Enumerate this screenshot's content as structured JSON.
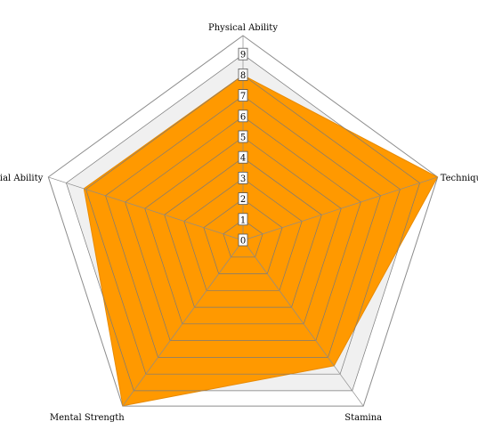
{
  "chart_data": {
    "type": "radar",
    "categories": [
      "Physical Ability",
      "Technique",
      "Stamina",
      "Mental Strength",
      "Special Ability"
    ],
    "series": [
      {
        "values": [
          8,
          9.9,
          7.5,
          9.9,
          8.1
        ]
      }
    ],
    "rmin": 0,
    "rmax": 9,
    "ticks": [
      "0",
      "1",
      "2",
      "3",
      "4",
      "5",
      "6",
      "7",
      "8",
      "9"
    ],
    "grid": true,
    "legend": "none"
  },
  "colors": {
    "series_fill": "#ff9900",
    "series_stroke": "#e88a00",
    "plot_band": "#f0f0f0",
    "grid_line": "#7a7a7a",
    "outer_line": "#8c8c8c",
    "label_text": "#000000"
  }
}
